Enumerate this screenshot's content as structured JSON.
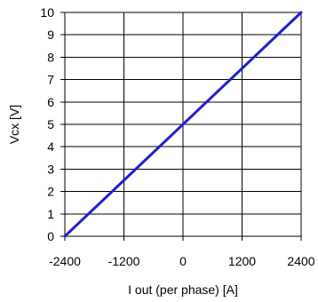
{
  "chart_data": {
    "type": "line",
    "xlabel": "I out (per phase)  [A]",
    "ylabel": "Vcx [V]",
    "xlim": [
      -2400,
      2400
    ],
    "ylim": [
      0,
      10
    ],
    "x_ticks": [
      -2400,
      -1200,
      0,
      1200,
      2400
    ],
    "y_ticks": [
      0,
      1,
      2,
      3,
      4,
      5,
      6,
      7,
      8,
      9,
      10
    ],
    "grid": true,
    "series": [
      {
        "color": "#1f1fcc",
        "x": [
          -2400,
          2400
        ],
        "y": [
          0,
          10
        ]
      }
    ]
  }
}
